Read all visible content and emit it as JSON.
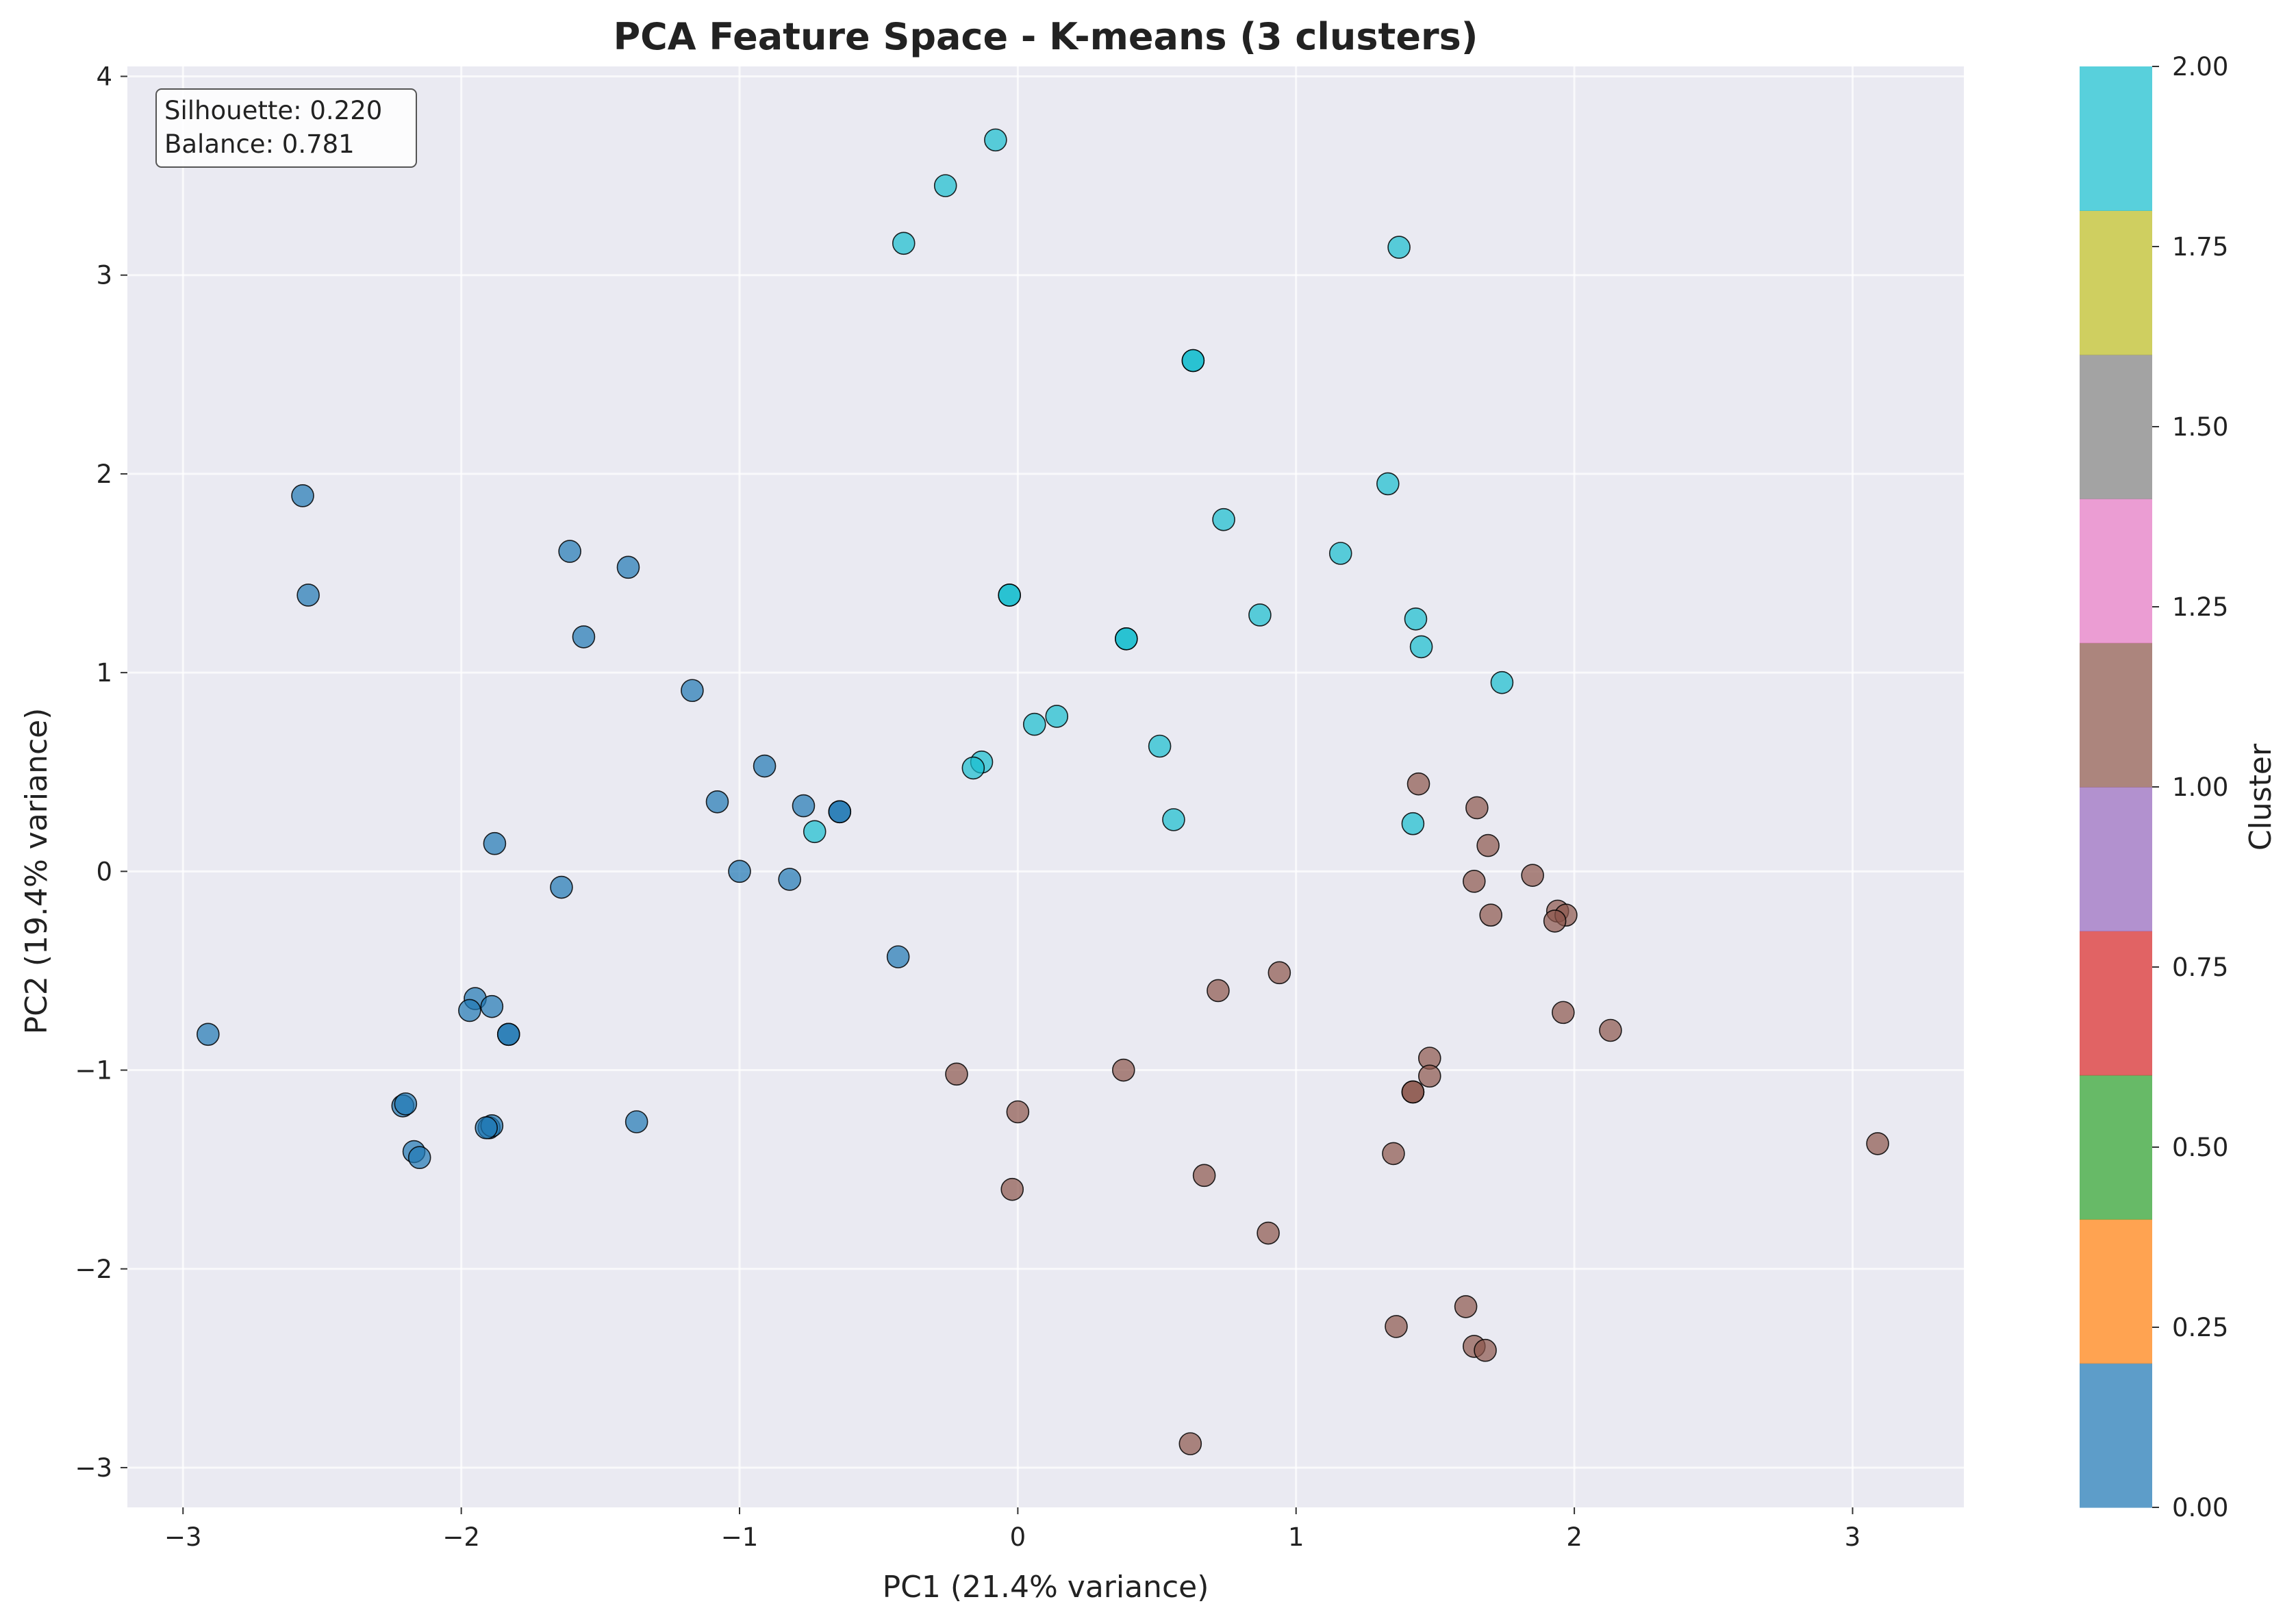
{
  "chart_data": {
    "type": "scatter",
    "title": "PCA Feature Space - K-means (3 clusters)",
    "xlabel": "PC1 (21.4% variance)",
    "ylabel": "PC2 (19.4% variance)",
    "xlim": [
      -3.2,
      3.4
    ],
    "ylim": [
      -3.2,
      4.05
    ],
    "xticks": [
      -3,
      -2,
      -1,
      0,
      1,
      2,
      3
    ],
    "xtick_labels": [
      "−3",
      "−2",
      "−1",
      "0",
      "1",
      "2",
      "3"
    ],
    "yticks": [
      -3,
      -2,
      -1,
      0,
      1,
      2,
      3,
      4
    ],
    "ytick_labels": [
      "−3",
      "−2",
      "−1",
      "0",
      "1",
      "2",
      "3",
      "4"
    ],
    "grid": true,
    "annotations": {
      "silhouette": "Silhouette: 0.220",
      "balance": "Balance: 0.781"
    },
    "colorbar": {
      "label": "Cluster",
      "min": 0,
      "max": 2,
      "ticks": [
        0,
        0.25,
        0.5,
        0.75,
        1.0,
        1.25,
        1.5,
        1.75,
        2.0
      ],
      "tick_labels": [
        "0.00",
        "0.25",
        "0.50",
        "0.75",
        "1.00",
        "1.25",
        "1.50",
        "1.75",
        "2.00"
      ],
      "colors": [
        "#1f77b4",
        "#ff7f0e",
        "#2ca02c",
        "#d62728",
        "#9467bd",
        "#8c564b",
        "#e377c2",
        "#7f7f7f",
        "#bcbd22",
        "#17becf"
      ]
    },
    "series": [
      {
        "cluster": 0,
        "color": "#1f77b4",
        "points": [
          [
            -2.57,
            1.89
          ],
          [
            -2.55,
            1.39
          ],
          [
            -1.61,
            1.61
          ],
          [
            -1.4,
            1.53
          ],
          [
            -1.56,
            1.18
          ],
          [
            -1.17,
            0.91
          ],
          [
            -0.91,
            0.53
          ],
          [
            -1.08,
            0.35
          ],
          [
            -0.77,
            0.33
          ],
          [
            -0.64,
            0.3
          ],
          [
            -0.64,
            0.3
          ],
          [
            -1.88,
            0.14
          ],
          [
            -1.64,
            -0.08
          ],
          [
            -1.0,
            0.0
          ],
          [
            -0.82,
            -0.04
          ],
          [
            -0.43,
            -0.43
          ],
          [
            -2.91,
            -0.82
          ],
          [
            -1.95,
            -0.64
          ],
          [
            -1.97,
            -0.7
          ],
          [
            -1.89,
            -0.68
          ],
          [
            -1.83,
            -0.82
          ],
          [
            -1.83,
            -0.82
          ],
          [
            -2.21,
            -1.18
          ],
          [
            -2.2,
            -1.17
          ],
          [
            -1.37,
            -1.26
          ],
          [
            -1.9,
            -1.29
          ],
          [
            -1.89,
            -1.28
          ],
          [
            -1.91,
            -1.29
          ],
          [
            -2.17,
            -1.41
          ],
          [
            -2.15,
            -1.44
          ]
        ]
      },
      {
        "cluster": 1,
        "color": "#8c564b",
        "points": [
          [
            1.44,
            0.44
          ],
          [
            1.65,
            0.32
          ],
          [
            1.69,
            0.13
          ],
          [
            1.64,
            -0.05
          ],
          [
            1.85,
            -0.02
          ],
          [
            1.7,
            -0.22
          ],
          [
            1.94,
            -0.2
          ],
          [
            1.97,
            -0.22
          ],
          [
            1.93,
            -0.25
          ],
          [
            0.94,
            -0.51
          ],
          [
            0.72,
            -0.6
          ],
          [
            1.96,
            -0.71
          ],
          [
            2.13,
            -0.8
          ],
          [
            1.48,
            -0.94
          ],
          [
            1.48,
            -1.03
          ],
          [
            -0.22,
            -1.02
          ],
          [
            0.38,
            -1.0
          ],
          [
            1.42,
            -1.11
          ],
          [
            1.42,
            -1.11
          ],
          [
            0.0,
            -1.21
          ],
          [
            1.35,
            -1.42
          ],
          [
            3.09,
            -1.37
          ],
          [
            0.67,
            -1.53
          ],
          [
            -0.02,
            -1.6
          ],
          [
            0.9,
            -1.82
          ],
          [
            1.61,
            -2.19
          ],
          [
            1.36,
            -2.29
          ],
          [
            1.64,
            -2.39
          ],
          [
            1.68,
            -2.41
          ],
          [
            0.62,
            -2.88
          ]
        ]
      },
      {
        "cluster": 2,
        "color": "#17becf",
        "points": [
          [
            -0.08,
            3.68
          ],
          [
            -0.26,
            3.45
          ],
          [
            -0.41,
            3.16
          ],
          [
            1.37,
            3.14
          ],
          [
            0.63,
            2.57
          ],
          [
            0.63,
            2.57
          ],
          [
            1.33,
            1.95
          ],
          [
            0.74,
            1.77
          ],
          [
            1.16,
            1.6
          ],
          [
            -0.03,
            1.39
          ],
          [
            -0.03,
            1.39
          ],
          [
            0.87,
            1.29
          ],
          [
            1.43,
            1.27
          ],
          [
            0.39,
            1.17
          ],
          [
            0.39,
            1.17
          ],
          [
            1.45,
            1.13
          ],
          [
            1.74,
            0.95
          ],
          [
            0.14,
            0.78
          ],
          [
            0.06,
            0.74
          ],
          [
            0.51,
            0.63
          ],
          [
            -0.13,
            0.55
          ],
          [
            -0.16,
            0.52
          ],
          [
            0.56,
            0.26
          ],
          [
            1.42,
            0.24
          ],
          [
            -0.73,
            0.2
          ]
        ]
      }
    ]
  }
}
